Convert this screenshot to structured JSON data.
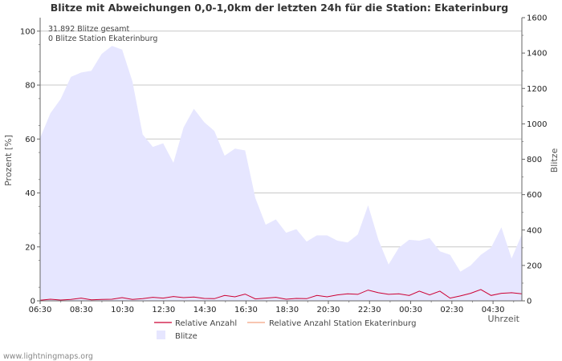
{
  "chart_data": {
    "type": "area",
    "title": "Blitze mit Abweichungen 0,0-1,0km der letzten 24h für die Station: Ekaterinburg",
    "ylabel_left": "Prozent   [%]",
    "ylabel_right": "Blitze",
    "xlabel": "Uhrzeit",
    "ylim_left": [
      0,
      105
    ],
    "ylim_right": [
      0,
      1600
    ],
    "yticks_left": [
      "0",
      "20",
      "40",
      "60",
      "80",
      "100"
    ],
    "yticks_right": [
      "0",
      "200",
      "400",
      "600",
      "800",
      "1000",
      "1200",
      "1400",
      "1600"
    ],
    "x_ticks": [
      "06:30",
      "08:30",
      "10:30",
      "12:30",
      "14:30",
      "16:30",
      "18:30",
      "20:30",
      "22:30",
      "00:30",
      "02:30",
      "04:30"
    ],
    "annotations": [
      "31.892 Blitze gesamt",
      "0 Blitze Station Ekaterinburg"
    ],
    "series": [
      {
        "name": "Blitze",
        "axis": "right",
        "color": "#e6e6ff",
        "values": [
          920,
          1060,
          1140,
          1265,
          1290,
          1300,
          1395,
          1440,
          1420,
          1240,
          940,
          870,
          890,
          780,
          980,
          1085,
          1010,
          960,
          820,
          860,
          850,
          580,
          430,
          460,
          385,
          405,
          335,
          370,
          370,
          340,
          330,
          375,
          540,
          345,
          205,
          300,
          345,
          340,
          355,
          280,
          260,
          165,
          200,
          260,
          300,
          415,
          240,
          375
        ]
      },
      {
        "name": "Relative Anzahl",
        "axis": "left",
        "color": "#cc0033",
        "values": [
          0.2,
          0.6,
          0.3,
          0.5,
          1.0,
          0.4,
          0.5,
          0.6,
          1.2,
          0.5,
          0.8,
          1.3,
          1.0,
          1.6,
          1.2,
          1.4,
          0.9,
          0.8,
          2.0,
          1.5,
          2.5,
          0.7,
          1.0,
          1.3,
          0.6,
          0.9,
          0.8,
          2.0,
          1.5,
          2.2,
          2.6,
          2.4,
          4.0,
          3.0,
          2.4,
          2.6,
          2.0,
          3.6,
          2.2,
          3.6,
          1.0,
          1.8,
          2.8,
          4.2,
          2.0,
          2.8,
          3.0,
          2.6
        ]
      },
      {
        "name": "Relative Anzahl Station Ekaterinburg",
        "axis": "left",
        "color": "#f4a582",
        "values": [
          0,
          0,
          0,
          0,
          0,
          0,
          0,
          0,
          0,
          0,
          0,
          0,
          0,
          0,
          0,
          0,
          0,
          0,
          0,
          0,
          0,
          0,
          0,
          0,
          0,
          0,
          0,
          0,
          0,
          0,
          0,
          0,
          0,
          0,
          0,
          0,
          0,
          0,
          0,
          0,
          0,
          0,
          0,
          0,
          0,
          0,
          0,
          0
        ]
      }
    ],
    "legend": [
      {
        "label": "Relative Anzahl",
        "color": "#cc0033",
        "kind": "line"
      },
      {
        "label": "Relative Anzahl Station Ekaterinburg",
        "color": "#f4a582",
        "kind": "line"
      },
      {
        "label": "Blitze",
        "color": "#e6e6ff",
        "kind": "area"
      }
    ]
  },
  "footer": "www.lightningmaps.org"
}
